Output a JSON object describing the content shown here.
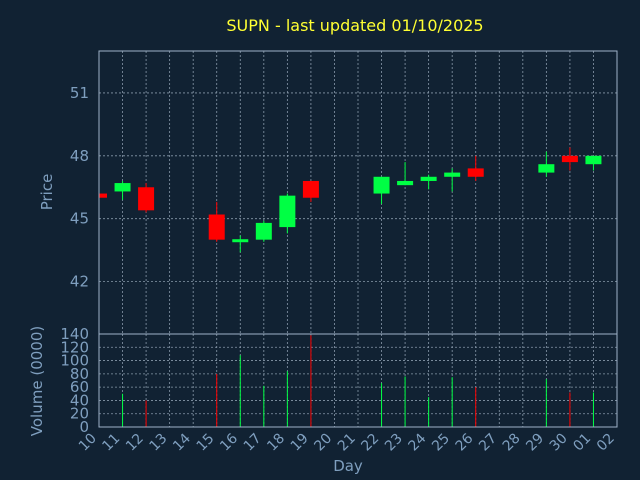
{
  "chart_data": [
    {
      "type": "candlestick",
      "title": "SUPN - last updated 01/10/2025",
      "xlabel": "Day",
      "ylabel": "Price",
      "ylim": [
        39.5,
        53.0
      ],
      "yticks": [
        42,
        45,
        48,
        51
      ],
      "grid": true,
      "x_ticks": [
        "10",
        "11",
        "12",
        "13",
        "14",
        "15",
        "16",
        "17",
        "18",
        "19",
        "20",
        "21",
        "22",
        "23",
        "24",
        "25",
        "26",
        "27",
        "28",
        "29",
        "30",
        "01",
        "02"
      ],
      "candles": [
        {
          "day": "10",
          "open": 46.2,
          "close": 46.0,
          "high": 46.3,
          "low": 45.9
        },
        {
          "day": "11",
          "open": 46.3,
          "close": 46.7,
          "high": 46.8,
          "low": 45.9
        },
        {
          "day": "12",
          "open": 46.5,
          "close": 45.4,
          "high": 46.7,
          "low": 45.3
        },
        {
          "day": "15",
          "open": 45.2,
          "close": 44.0,
          "high": 45.8,
          "low": 43.9
        },
        {
          "day": "16",
          "open": 43.9,
          "close": 44.0,
          "high": 44.2,
          "low": 43.4
        },
        {
          "day": "17",
          "open": 44.0,
          "close": 44.8,
          "high": 44.9,
          "low": 43.9
        },
        {
          "day": "18",
          "open": 44.6,
          "close": 46.1,
          "high": 46.2,
          "low": 44.3
        },
        {
          "day": "19",
          "open": 46.8,
          "close": 46.0,
          "high": 46.8,
          "low": 45.8
        },
        {
          "day": "22",
          "open": 46.2,
          "close": 47.0,
          "high": 47.0,
          "low": 45.7
        },
        {
          "day": "23",
          "open": 46.6,
          "close": 46.8,
          "high": 47.7,
          "low": 46.6
        },
        {
          "day": "24",
          "open": 46.8,
          "close": 47.0,
          "high": 47.1,
          "low": 46.4
        },
        {
          "day": "25",
          "open": 47.0,
          "close": 47.2,
          "high": 47.4,
          "low": 46.3
        },
        {
          "day": "26",
          "open": 47.4,
          "close": 47.0,
          "high": 48.0,
          "low": 46.8
        },
        {
          "day": "29",
          "open": 47.2,
          "close": 47.6,
          "high": 48.2,
          "low": 47.0
        },
        {
          "day": "30",
          "open": 48.0,
          "close": 47.7,
          "high": 48.4,
          "low": 47.3
        },
        {
          "day": "01",
          "open": 47.6,
          "close": 48.0,
          "high": 48.0,
          "low": 47.3
        }
      ]
    },
    {
      "type": "bar",
      "xlabel": "Day",
      "ylabel": "Volume (0000)",
      "ylim": [
        0,
        140
      ],
      "yticks": [
        0,
        20,
        40,
        60,
        80,
        100,
        120,
        140
      ],
      "grid": true,
      "categories": [
        "11",
        "12",
        "15",
        "16",
        "17",
        "18",
        "19",
        "22",
        "23",
        "24",
        "25",
        "26",
        "29",
        "30",
        "01"
      ],
      "values": [
        50,
        40,
        80,
        108,
        62,
        84,
        138,
        66,
        76,
        45,
        75,
        60,
        72,
        52,
        52
      ],
      "directions": [
        "up",
        "down",
        "down",
        "up",
        "up",
        "up",
        "down",
        "up",
        "up",
        "up",
        "up",
        "down",
        "up",
        "down",
        "up"
      ]
    }
  ],
  "colors": {
    "background": "#112233",
    "frame": "#9fb3c8",
    "grid": "#8899aa",
    "up": "#00ff44",
    "down": "#ff0000",
    "title": "#ffff33",
    "axis_text": "#7f9fbf"
  }
}
